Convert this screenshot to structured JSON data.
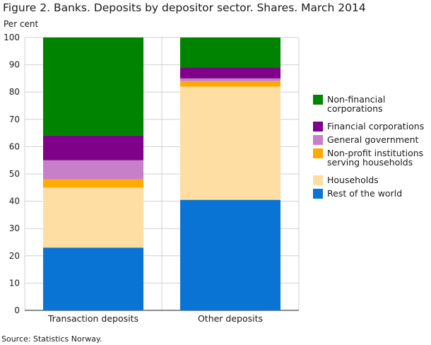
{
  "figure": {
    "title": "Figure 2. Banks. Deposits by depositor sector. Shares. March 2014",
    "source": "Source: Statistics Norway."
  },
  "chart_data": {
    "type": "bar",
    "stacked": true,
    "title": "Figure 2. Banks. Deposits by depositor sector. Shares. March 2014",
    "ylabel": "Per cent",
    "xlabel": "",
    "ylim": [
      0,
      100
    ],
    "yticks": [
      0,
      10,
      20,
      30,
      40,
      50,
      60,
      70,
      80,
      90,
      100
    ],
    "grid": true,
    "legend_position": "right",
    "categories": [
      "Transaction deposits",
      "Other deposits"
    ],
    "series": [
      {
        "name": "Rest of the world",
        "color": "#0a74d4",
        "values": [
          23,
          40.5
        ]
      },
      {
        "name": "Households",
        "color": "#ffdea3",
        "values": [
          22,
          41.5
        ]
      },
      {
        "name": "Non-profit institutions serving households",
        "legend_lines": [
          "Non-profit institutions",
          "serving households"
        ],
        "color": "#ffaa00",
        "values": [
          3,
          2
        ]
      },
      {
        "name": "General government",
        "color": "#c77fca",
        "values": [
          7,
          1
        ]
      },
      {
        "name": "Financial corporations",
        "color": "#7f0089",
        "values": [
          9,
          4
        ]
      },
      {
        "name": "Non-financial corporations",
        "legend_lines": [
          "Non-financial",
          "corporations"
        ],
        "color": "#008400",
        "values": [
          36,
          11
        ]
      }
    ]
  }
}
